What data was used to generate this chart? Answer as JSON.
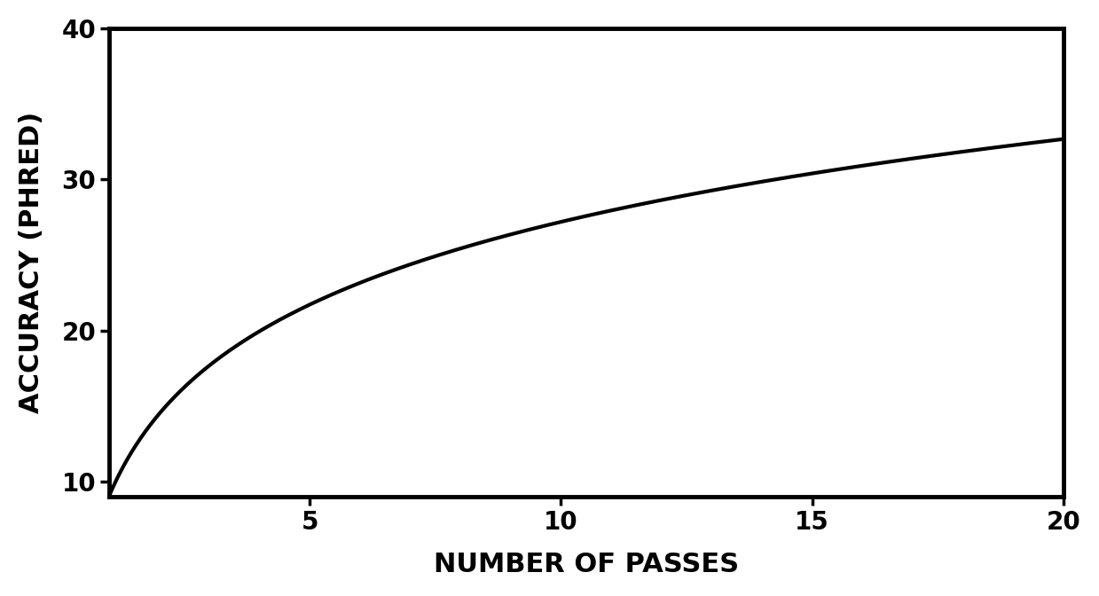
{
  "title": "",
  "xlabel": "NUMBER OF PASSES",
  "ylabel": "ACCURACY (PHRED)",
  "xlim": [
    1,
    20
  ],
  "ylim": [
    9,
    40
  ],
  "xticks": [
    5,
    10,
    15,
    20
  ],
  "yticks": [
    10,
    20,
    30,
    40
  ],
  "line_color": "#000000",
  "line_width": 3.0,
  "background_color": "#ffffff",
  "xlabel_fontsize": 22,
  "ylabel_fontsize": 22,
  "tick_fontsize": 20,
  "curve_a": 9.0,
  "curve_b": 7.9,
  "curve_x_start": 1,
  "curve_x_end": 20,
  "spine_linewidth": 3.5
}
